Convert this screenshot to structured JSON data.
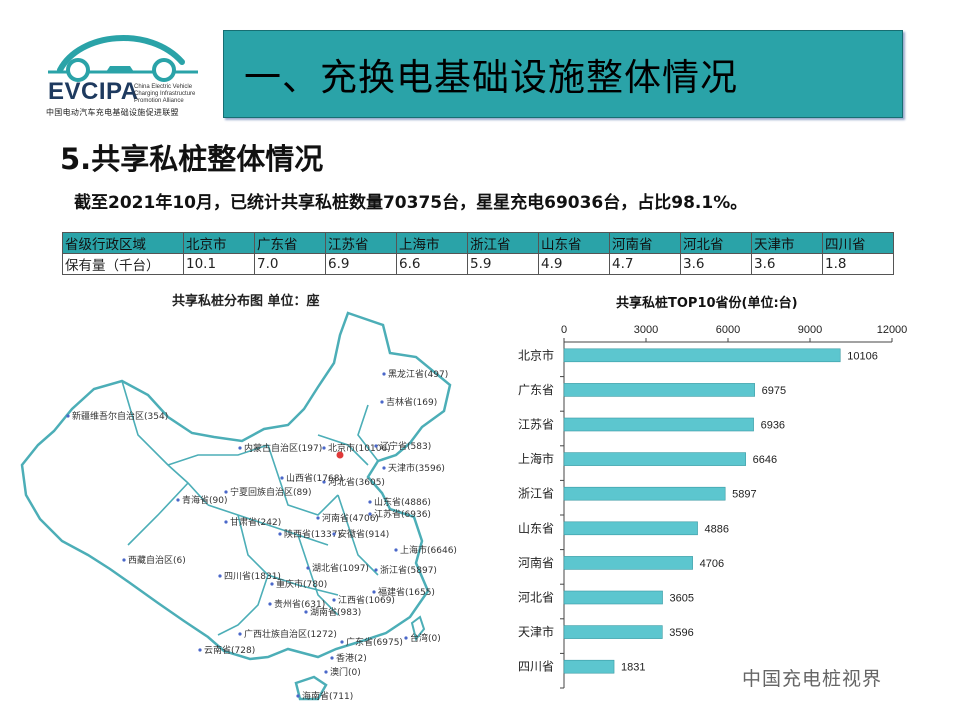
{
  "logo": {
    "name": "EVCIPA",
    "english": [
      "China Electric Vehicle",
      "Charging Infrastructure",
      "Promotion Alliance"
    ],
    "chinese": "中国电动汽车充电基础设施促进联盟"
  },
  "banner": {
    "title": "一、充换电基础设施整体情况"
  },
  "section": {
    "title": "5.共享私桩整体情况"
  },
  "summary": {
    "text": "截至2021年10月，已统计共享私桩数量70375台，星星充电69036台，占比98.1%。"
  },
  "table": {
    "header": [
      "省级行政区域",
      "北京市",
      "广东省",
      "江苏省",
      "上海市",
      "浙江省",
      "山东省",
      "河南省",
      "河北省",
      "天津市",
      "四川省"
    ],
    "row": [
      "保有量（千台）",
      "10.1",
      "7.0",
      "6.9",
      "6.6",
      "5.9",
      "4.9",
      "4.7",
      "3.6",
      "3.6",
      "1.8"
    ]
  },
  "map": {
    "title": "共享私桩分布图  单位：座",
    "labels": [
      "黑龙江省(497)",
      "吉林省(169)",
      "新疆维吾尔自治区(354)",
      "内蒙古自治区(197)",
      "北京市(10106)",
      "辽宁省(583)",
      "天津市(3596)",
      "河北省(3605)",
      "山西省(1768)",
      "宁夏回族自治区(89)",
      "山东省(4886)",
      "青海省(90)",
      "甘肃省(242)",
      "河南省(4706)",
      "陕西省(1337)",
      "安徽省(914)",
      "江苏省(6936)",
      "上海市(6646)",
      "西藏自治区(6)",
      "湖北省(1097)",
      "浙江省(5897)",
      "四川省(1831)",
      "重庆市(780)",
      "福建省(1655)",
      "贵州省(631)",
      "湖南省(983)",
      "江西省(1069)",
      "广西壮族自治区(1272)",
      "广东省(6975)",
      "台湾(0)",
      "云南省(728)",
      "香港(2)",
      "澳门(0)",
      "海南省(711)"
    ]
  },
  "chart_data": {
    "type": "bar",
    "orientation": "horizontal",
    "title": "共享私桩TOP10省份(单位:台)",
    "categories": [
      "北京市",
      "广东省",
      "江苏省",
      "上海市",
      "浙江省",
      "山东省",
      "河南省",
      "河北省",
      "天津市",
      "四川省"
    ],
    "values": [
      10106,
      6975,
      6936,
      6646,
      5897,
      4886,
      4706,
      3605,
      3596,
      1831
    ],
    "xlim": [
      0,
      12000
    ],
    "xticks": [
      0,
      3000,
      6000,
      9000,
      12000
    ],
    "axis_position": "top",
    "grid": false,
    "bar_color": "#5cc6cf"
  },
  "watermark": {
    "text": "中国充电桩视界"
  }
}
